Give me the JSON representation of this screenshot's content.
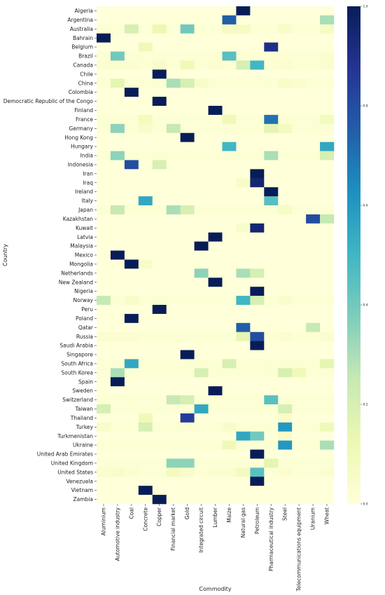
{
  "chart_data": {
    "type": "heatmap",
    "title": "",
    "xlabel": "Commodity",
    "ylabel": "Country",
    "colormap": "YlGnBu",
    "vmin": 0.0,
    "vmax": 1.0,
    "colorbar_ticks": [
      "0.0",
      "0.2",
      "0.4",
      "0.6",
      "0.8",
      "1.0"
    ],
    "commodities": [
      "Aluminium",
      "Automotive industry",
      "Coal",
      "Concrete",
      "Copper",
      "Financial market",
      "Gold",
      "Integrated circuit",
      "Lumber",
      "Maize",
      "Natural gas",
      "Petroleum",
      "Pharmaceutical industry",
      "Steel",
      "Telecommunications equipment",
      "Uranium",
      "Wheat"
    ],
    "countries": [
      "Algeria",
      "Argentina",
      "Australia",
      "Bahrain",
      "Belgium",
      "Brazil",
      "Canada",
      "Chile",
      "China",
      "Colombia",
      "Democratic Republic of the Congo",
      "Finland",
      "France",
      "Germany",
      "Hong Kong",
      "Hungary",
      "India",
      "Indonesia",
      "Iran",
      "Iraq",
      "Ireland",
      "Italy",
      "Japan",
      "Kazakhstan",
      "Kuwait",
      "Latvia",
      "Malaysia",
      "Mexico",
      "Mongolia",
      "Netherlands",
      "New Zealand",
      "Nigeria",
      "Norway",
      "Peru",
      "Poland",
      "Qatar",
      "Russia",
      "Saudi Arabia",
      "Singapore",
      "South Africa",
      "South Korea",
      "Spain",
      "Sweden",
      "Switzerland",
      "Taiwan",
      "Thailand",
      "Turkey",
      "Turkmenistan",
      "Ukraine",
      "United Arab Emirates",
      "United Kingdom",
      "United States",
      "Venezuela",
      "Vietnam",
      "Zambia"
    ],
    "values": [
      [
        0,
        0,
        0,
        0,
        0,
        0,
        0,
        0,
        0,
        0,
        1.0,
        0,
        0,
        0,
        0,
        0,
        0
      ],
      [
        0,
        0,
        0,
        0,
        0,
        0,
        0,
        0,
        0,
        0.75,
        0,
        0,
        0,
        0,
        0,
        0,
        0.3
      ],
      [
        0.02,
        0.02,
        0.2,
        0.02,
        0.12,
        0.02,
        0.4,
        0.02,
        0.02,
        0.07,
        0.07,
        0.02,
        0.02,
        0.05,
        0.02,
        0.02,
        0.07
      ],
      [
        1.0,
        0,
        0,
        0,
        0,
        0,
        0,
        0,
        0,
        0,
        0,
        0,
        0,
        0,
        0,
        0,
        0
      ],
      [
        0,
        0,
        0,
        0.1,
        0,
        0,
        0,
        0,
        0,
        0,
        0,
        0,
        0.9,
        0,
        0,
        0,
        0
      ],
      [
        0.02,
        0.4,
        0.02,
        0.02,
        0.02,
        0.02,
        0.02,
        0.02,
        0.02,
        0.45,
        0.02,
        0.02,
        0.02,
        0.02,
        0.02,
        0.02,
        0.03
      ],
      [
        0.03,
        0.03,
        0.03,
        0.02,
        0.05,
        0.02,
        0.1,
        0.02,
        0.03,
        0.02,
        0.2,
        0.5,
        0.02,
        0.03,
        0.02,
        0.02,
        0.03
      ],
      [
        0,
        0,
        0,
        0,
        1.0,
        0,
        0,
        0,
        0,
        0,
        0,
        0,
        0,
        0,
        0,
        0,
        0
      ],
      [
        0.02,
        0.15,
        0.02,
        0.02,
        0.02,
        0.3,
        0.2,
        0.05,
        0.02,
        0.02,
        0.02,
        0.02,
        0.02,
        0.05,
        0.03,
        0.02,
        0.02
      ],
      [
        0,
        0,
        1.0,
        0,
        0,
        0,
        0,
        0,
        0,
        0,
        0,
        0,
        0,
        0,
        0,
        0,
        0
      ],
      [
        0,
        0,
        0,
        0,
        1.0,
        0,
        0,
        0,
        0,
        0,
        0,
        0,
        0,
        0,
        0,
        0,
        0
      ],
      [
        0,
        0,
        0,
        0,
        0,
        0,
        0,
        0,
        1.0,
        0,
        0,
        0,
        0,
        0,
        0,
        0,
        0
      ],
      [
        0.02,
        0.02,
        0.02,
        0.08,
        0.02,
        0.02,
        0.02,
        0.02,
        0.02,
        0.1,
        0.02,
        0.02,
        0.7,
        0.02,
        0.02,
        0.02,
        0.08
      ],
      [
        0.02,
        0.35,
        0.02,
        0.05,
        0.02,
        0.25,
        0.02,
        0.02,
        0.02,
        0.02,
        0.02,
        0.02,
        0.15,
        0.08,
        0.02,
        0.02,
        0.02
      ],
      [
        0,
        0,
        0,
        0,
        0,
        0,
        1.0,
        0,
        0,
        0,
        0,
        0,
        0,
        0,
        0,
        0,
        0
      ],
      [
        0,
        0,
        0,
        0,
        0,
        0,
        0,
        0,
        0,
        0.5,
        0,
        0,
        0,
        0,
        0,
        0,
        0.55
      ],
      [
        0.02,
        0.35,
        0.02,
        0.02,
        0.02,
        0.02,
        0.02,
        0.02,
        0.02,
        0.02,
        0.02,
        0.02,
        0.3,
        0.02,
        0.02,
        0.02,
        0.2
      ],
      [
        0,
        0,
        0.8,
        0,
        0.2,
        0,
        0,
        0,
        0,
        0,
        0,
        0,
        0,
        0,
        0,
        0,
        0
      ],
      [
        0,
        0,
        0,
        0,
        0,
        0,
        0,
        0,
        0,
        0,
        0,
        1.0,
        0,
        0,
        0,
        0,
        0
      ],
      [
        0,
        0,
        0,
        0,
        0,
        0,
        0,
        0,
        0,
        0,
        0.05,
        0.95,
        0,
        0,
        0,
        0,
        0
      ],
      [
        0,
        0,
        0,
        0,
        0,
        0,
        0,
        0,
        0,
        0,
        0,
        0,
        1.0,
        0,
        0,
        0,
        0
      ],
      [
        0,
        0,
        0,
        0.55,
        0,
        0,
        0,
        0,
        0,
        0,
        0,
        0,
        0.45,
        0,
        0,
        0,
        0
      ],
      [
        0.02,
        0.25,
        0.02,
        0.02,
        0.02,
        0.3,
        0.2,
        0.02,
        0.02,
        0.02,
        0.02,
        0.02,
        0.02,
        0.06,
        0.02,
        0.02,
        0.02
      ],
      [
        0,
        0,
        0,
        0,
        0,
        0,
        0,
        0,
        0,
        0,
        0,
        0,
        0,
        0,
        0,
        0.8,
        0.25
      ],
      [
        0,
        0,
        0,
        0,
        0,
        0,
        0,
        0,
        0,
        0,
        0.05,
        0.95,
        0,
        0,
        0,
        0,
        0
      ],
      [
        0,
        0,
        0,
        0,
        0,
        0,
        0,
        0,
        1.0,
        0,
        0,
        0,
        0,
        0,
        0,
        0,
        0
      ],
      [
        0,
        0,
        0,
        0,
        0,
        0,
        0,
        1.0,
        0,
        0,
        0,
        0,
        0,
        0,
        0,
        0,
        0
      ],
      [
        0,
        1.0,
        0,
        0,
        0,
        0,
        0,
        0,
        0,
        0,
        0,
        0,
        0,
        0,
        0,
        0,
        0
      ],
      [
        0,
        0,
        1.0,
        0.05,
        0,
        0,
        0,
        0,
        0,
        0,
        0,
        0,
        0,
        0,
        0,
        0,
        0
      ],
      [
        0,
        0,
        0,
        0,
        0,
        0,
        0,
        0.35,
        0,
        0,
        0.3,
        0.2,
        0,
        0,
        0,
        0,
        0
      ],
      [
        0,
        0,
        0,
        0,
        0,
        0,
        0,
        0,
        1.0,
        0,
        0,
        0,
        0,
        0,
        0,
        0,
        0
      ],
      [
        0,
        0,
        0,
        0,
        0,
        0,
        0,
        0,
        0,
        0,
        0,
        1.0,
        0,
        0,
        0,
        0,
        0
      ],
      [
        0.25,
        0.02,
        0.05,
        0.02,
        0.02,
        0.02,
        0.02,
        0.02,
        0.02,
        0.02,
        0.5,
        0.2,
        0.02,
        0.04,
        0.02,
        0.02,
        0.02
      ],
      [
        0,
        0,
        0,
        0,
        1.0,
        0,
        0,
        0,
        0,
        0,
        0,
        0,
        0,
        0,
        0,
        0,
        0
      ],
      [
        0,
        0,
        1.0,
        0,
        0,
        0,
        0,
        0,
        0,
        0,
        0,
        0,
        0,
        0,
        0,
        0,
        0
      ],
      [
        0,
        0,
        0,
        0,
        0,
        0,
        0,
        0,
        0,
        0,
        0.75,
        0,
        0,
        0,
        0,
        0.25,
        0
      ],
      [
        0.03,
        0.03,
        0.03,
        0.02,
        0.02,
        0.02,
        0.02,
        0.02,
        0.02,
        0.02,
        0.15,
        0.8,
        0.02,
        0.03,
        0.02,
        0.02,
        0.03
      ],
      [
        0,
        0,
        0,
        0,
        0,
        0,
        0,
        0,
        0,
        0,
        0,
        1.0,
        0,
        0,
        0,
        0,
        0
      ],
      [
        0,
        0,
        0,
        0,
        0,
        0,
        1.0,
        0,
        0,
        0,
        0,
        0,
        0,
        0,
        0,
        0,
        0
      ],
      [
        0.02,
        0.02,
        0.55,
        0.02,
        0.02,
        0.02,
        0.02,
        0.02,
        0.02,
        0.2,
        0.02,
        0.02,
        0.02,
        0.02,
        0.02,
        0.02,
        0.15
      ],
      [
        0.02,
        0.3,
        0.02,
        0.02,
        0.02,
        0.02,
        0.02,
        0.2,
        0.02,
        0.02,
        0.02,
        0.02,
        0.02,
        0.2,
        0.1,
        0.02,
        0.02
      ],
      [
        0,
        1.0,
        0,
        0,
        0,
        0,
        0,
        0,
        0,
        0,
        0,
        0,
        0,
        0,
        0,
        0,
        0
      ],
      [
        0,
        0,
        0,
        0,
        0,
        0,
        0,
        0,
        1.0,
        0,
        0,
        0,
        0,
        0,
        0,
        0,
        0
      ],
      [
        0.02,
        0.02,
        0.02,
        0.02,
        0.02,
        0.25,
        0.2,
        0.02,
        0.02,
        0.02,
        0.02,
        0.02,
        0.45,
        0.02,
        0.02,
        0.02,
        0.02
      ],
      [
        0.2,
        0.02,
        0.02,
        0.02,
        0.02,
        0.02,
        0.02,
        0.55,
        0.02,
        0.02,
        0.02,
        0.02,
        0.02,
        0.2,
        0.02,
        0.02,
        0.02
      ],
      [
        0,
        0,
        0,
        0.1,
        0,
        0,
        0.85,
        0,
        0,
        0,
        0,
        0,
        0,
        0.05,
        0,
        0,
        0
      ],
      [
        0.05,
        0.02,
        0.02,
        0.2,
        0.02,
        0.02,
        0.02,
        0.02,
        0.02,
        0.05,
        0.02,
        0.02,
        0.02,
        0.6,
        0.02,
        0.02,
        0.1
      ],
      [
        0,
        0,
        0,
        0,
        0,
        0,
        0,
        0,
        0,
        0,
        0.55,
        0.4,
        0,
        0.05,
        0,
        0,
        0
      ],
      [
        0.02,
        0.02,
        0.02,
        0.02,
        0.02,
        0.02,
        0.02,
        0.02,
        0.02,
        0.1,
        0.02,
        0.02,
        0.02,
        0.6,
        0.02,
        0.02,
        0.3
      ],
      [
        0,
        0,
        0,
        0,
        0,
        0,
        0,
        0,
        0,
        0,
        0,
        1.0,
        0,
        0,
        0,
        0,
        0
      ],
      [
        0.02,
        0.02,
        0.02,
        0.02,
        0.02,
        0.35,
        0.35,
        0.02,
        0.02,
        0.02,
        0.02,
        0.02,
        0.15,
        0.02,
        0.02,
        0.02,
        0.02
      ],
      [
        0.03,
        0.05,
        0.03,
        0.02,
        0.02,
        0.08,
        0.05,
        0.02,
        0.03,
        0.03,
        0.08,
        0.45,
        0.02,
        0.03,
        0.02,
        0.02,
        0.03
      ],
      [
        0,
        0,
        0,
        0,
        0,
        0,
        0,
        0,
        0,
        0,
        0,
        1.0,
        0,
        0,
        0,
        0,
        0
      ],
      [
        0,
        0,
        0,
        1.0,
        0,
        0,
        0,
        0,
        0,
        0,
        0,
        0,
        0,
        0,
        0,
        0,
        0
      ],
      [
        0,
        0,
        0,
        0,
        1.0,
        0,
        0,
        0,
        0,
        0,
        0,
        0,
        0,
        0,
        0,
        0,
        0
      ]
    ],
    "grid": false,
    "legend": "colorbar-right"
  }
}
